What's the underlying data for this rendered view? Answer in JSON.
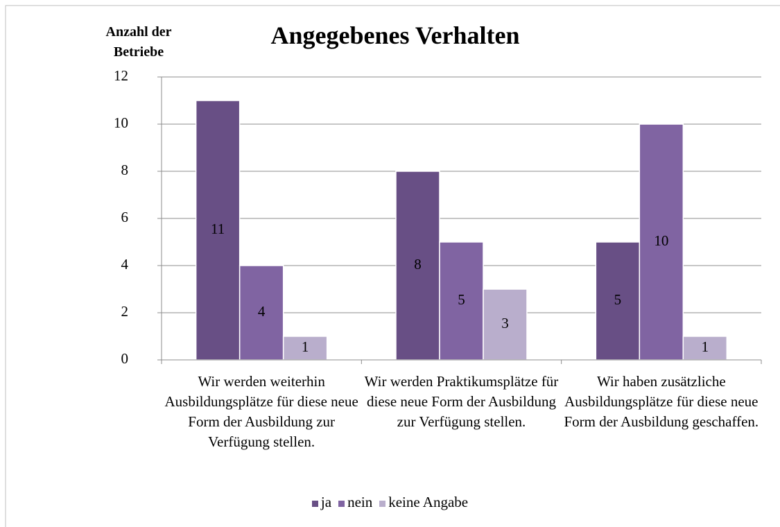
{
  "chart_data": {
    "type": "bar",
    "title": "Angegebenes Verhalten",
    "y_label": "Anzahl der Betriebe",
    "categories": [
      "Wir werden weiterhin Ausbildungsplätze für diese neue Form der Ausbildung zur Verfügung stellen.",
      "Wir werden Praktikumsplätze für diese neue Form der Ausbildung zur Verfügung stellen.",
      "Wir haben zusätzliche Ausbildungsplätze für diese neue Form der Ausbildung geschaffen."
    ],
    "series": [
      {
        "name": "ja",
        "color": "#684f85",
        "values": [
          11,
          8,
          5
        ]
      },
      {
        "name": "nein",
        "color": "#8064a2",
        "values": [
          4,
          5,
          10
        ]
      },
      {
        "name": "keine Angabe",
        "color": "#b9aecc",
        "values": [
          1,
          3,
          1
        ]
      }
    ],
    "ylim": [
      0,
      12
    ],
    "yticks": [
      0,
      2,
      4,
      6,
      8,
      10,
      12
    ],
    "grid": true,
    "legend": "bottom"
  }
}
